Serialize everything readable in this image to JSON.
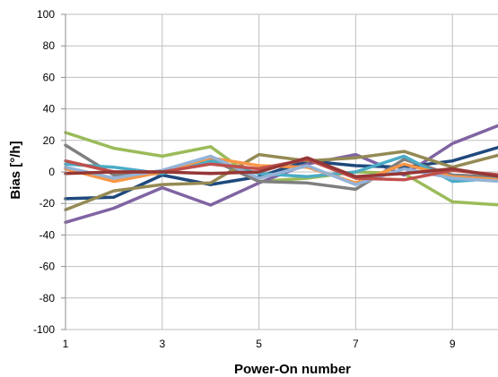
{
  "chart_data": {
    "type": "line",
    "title": "",
    "xlabel": "Power-On number",
    "ylabel": "Bias [°/h]",
    "xlim": [
      1,
      10
    ],
    "ylim": [
      -100,
      100
    ],
    "grid": true,
    "x": [
      1,
      2,
      3,
      4,
      5,
      6,
      7,
      8,
      9,
      10
    ],
    "x_ticks": [
      "1",
      "3",
      "5",
      "7",
      "9"
    ],
    "y_ticks": [
      "100",
      "80",
      "60",
      "40",
      "20",
      "0",
      "-20",
      "-40",
      "-60",
      "-80",
      "-100"
    ],
    "series": [
      {
        "color": "#9bbb59",
        "values": [
          25,
          15,
          10,
          16,
          -6,
          -4,
          0,
          -1,
          -19,
          -21
        ]
      },
      {
        "color": "#8064a2",
        "values": [
          -32,
          -23,
          -10,
          -21,
          -7,
          5,
          11,
          -2,
          18,
          30
        ]
      },
      {
        "color": "#1f497d",
        "values": [
          -17,
          -16,
          -2,
          -8,
          -3,
          7,
          4,
          3,
          7,
          16
        ]
      },
      {
        "color": "#7f7f7f",
        "values": [
          17,
          -2,
          -1,
          8,
          -6,
          -7,
          -11,
          8,
          -2,
          -3
        ]
      },
      {
        "color": "#948a54",
        "values": [
          -24,
          -12,
          -8,
          -7,
          11,
          7,
          9,
          13,
          3,
          11
        ]
      },
      {
        "color": "#4bacc6",
        "values": [
          5,
          3,
          -1,
          7,
          -1,
          -3,
          0,
          10,
          -6,
          -4
        ]
      },
      {
        "color": "#f79646",
        "values": [
          2,
          -6,
          0,
          9,
          4,
          3,
          -7,
          5,
          -3,
          -5
        ]
      },
      {
        "color": "#95b3d7",
        "values": [
          3,
          -4,
          1,
          10,
          -4,
          4,
          -8,
          2,
          -4,
          -6
        ]
      },
      {
        "color": "#c0504d",
        "values": [
          7,
          0,
          0,
          5,
          2,
          8,
          -4,
          -5,
          1,
          -2
        ]
      },
      {
        "color": "#953735",
        "values": [
          -1,
          0,
          0,
          -1,
          0,
          9,
          -3,
          -1,
          2,
          -3
        ]
      }
    ]
  }
}
